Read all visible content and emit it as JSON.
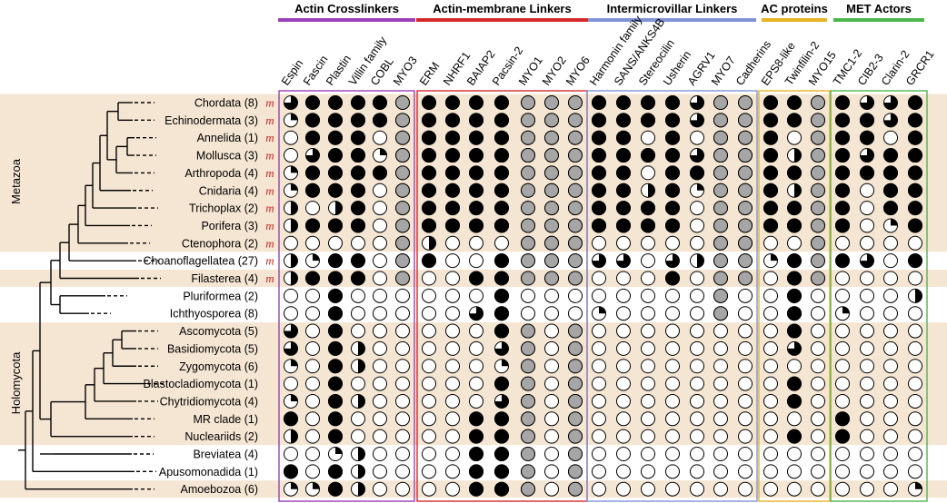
{
  "groups": [
    {
      "label": "Actin Crosslinkers",
      "color": "#9b3fb8"
    },
    {
      "label": "Actin-membrane Linkers",
      "color": "#d42a2a"
    },
    {
      "label": "Intermicrovillar Linkers",
      "color": "#7f93d6"
    },
    {
      "label": "AC proteins",
      "color": "#e8b323"
    },
    {
      "label": "MET Actors",
      "color": "#4cb84c"
    }
  ],
  "columns": [
    "Espin",
    "Fascin",
    "Plastin",
    "Villin family",
    "COBL",
    "MYO3",
    "ERM",
    "NHRF1",
    "BAIAP2",
    "Pacsin-2",
    "MYO1",
    "MYO2",
    "MYO6",
    "Harmonin family",
    "SANS/ANKS4B",
    "Stereocilin",
    "Usherin",
    "AGRV1",
    "MYO7",
    "Cadherins",
    "EPS8-like",
    "Twinfilin-2",
    "MYO15",
    "TMC1-2",
    "CIB2-3",
    "Clarin-2",
    "GRCR1"
  ],
  "clades": [
    {
      "label": "Metazoa"
    },
    {
      "label": "Holomycota"
    }
  ],
  "taxa": [
    {
      "name": "Chordata (8)",
      "mv": "m"
    },
    {
      "name": "Echinodermata (3)",
      "mv": "m"
    },
    {
      "name": "Annelida (1)",
      "mv": "m"
    },
    {
      "name": "Mollusca (3)",
      "mv": "m"
    },
    {
      "name": "Arthropoda (4)",
      "mv": "m"
    },
    {
      "name": "Cnidaria (4)",
      "mv": "m"
    },
    {
      "name": "Trichoplax (2)",
      "mv": "m"
    },
    {
      "name": "Porifera (3)",
      "mv": "m"
    },
    {
      "name": "Ctenophora (2)",
      "mv": "m"
    },
    {
      "name": "Choanoflagellatea (27)",
      "mv": "m"
    },
    {
      "name": "Filasterea (4)",
      "mv": "m"
    },
    {
      "name": "Pluriformea (2)",
      "mv": ""
    },
    {
      "name": "Ichthyosporea (8)",
      "mv": ""
    },
    {
      "name": "Ascomycota (5)",
      "mv": ""
    },
    {
      "name": "Basidiomycota (5)",
      "mv": ""
    },
    {
      "name": "Zygomycota (6)",
      "mv": ""
    },
    {
      "name": "Blastocladiomycota (1)",
      "mv": ""
    },
    {
      "name": "Chytridiomycota (4)",
      "mv": ""
    },
    {
      "name": "MR clade (1)",
      "mv": ""
    },
    {
      "name": "Nucleariids (2)",
      "mv": ""
    },
    {
      "name": "Breviatea (4)",
      "mv": ""
    },
    {
      "name": "Apusomonadida (1)",
      "mv": ""
    },
    {
      "name": "Amoebozoa (6)",
      "mv": ""
    }
  ],
  "legend_note": "cell values: 0 = absent, 0.25/0.5/0.75 = fraction of species with gene, 1 = present, g = gray",
  "matrix": [
    [
      0.75,
      1,
      1,
      1,
      1,
      "g",
      1,
      1,
      1,
      1,
      "g",
      "g",
      "g",
      1,
      1,
      1,
      1,
      0.75,
      "g",
      "g",
      1,
      1,
      "g",
      1,
      0.75,
      0.75,
      1
    ],
    [
      0.25,
      1,
      1,
      1,
      1,
      "g",
      1,
      1,
      1,
      1,
      "g",
      "g",
      "g",
      1,
      1,
      1,
      1,
      0.75,
      "g",
      "g",
      1,
      1,
      "g",
      1,
      1,
      0.75,
      1
    ],
    [
      0,
      1,
      1,
      1,
      0,
      "g",
      1,
      1,
      1,
      1,
      "g",
      "g",
      "g",
      1,
      1,
      0,
      1,
      0,
      "g",
      "g",
      1,
      0,
      "g",
      1,
      1,
      0,
      1
    ],
    [
      0,
      0.75,
      1,
      1,
      0.25,
      "g",
      1,
      1,
      1,
      1,
      "g",
      "g",
      "g",
      1,
      1,
      1,
      1,
      0.75,
      "g",
      "g",
      1,
      0.5,
      "g",
      1,
      0.75,
      1,
      1
    ],
    [
      0.25,
      1,
      1,
      1,
      1,
      "g",
      1,
      1,
      1,
      1,
      "g",
      "g",
      "g",
      1,
      1,
      0,
      1,
      1,
      "g",
      "g",
      1,
      1,
      "g",
      1,
      1,
      1,
      1
    ],
    [
      0.25,
      1,
      1,
      1,
      0,
      "g",
      1,
      1,
      1,
      1,
      "g",
      "g",
      "g",
      1,
      1,
      0.5,
      1,
      0.25,
      "g",
      "g",
      1,
      0.5,
      "g",
      1,
      0,
      1,
      1
    ],
    [
      0.5,
      0,
      0.5,
      1,
      0,
      "g",
      1,
      1,
      1,
      1,
      "g",
      "g",
      "g",
      1,
      1,
      1,
      1,
      0,
      "g",
      "g",
      1,
      1,
      "g",
      1,
      0,
      1,
      1
    ],
    [
      0.5,
      1,
      1,
      1,
      0,
      "g",
      1,
      1,
      1,
      1,
      "g",
      "g",
      "g",
      1,
      1,
      1,
      1,
      0,
      "g",
      "g",
      1,
      1,
      "g",
      1,
      0,
      0.25,
      1
    ],
    [
      0,
      0,
      0,
      0,
      0,
      "g",
      0.5,
      0,
      0,
      0,
      "g",
      "g",
      "g",
      0,
      0,
      0,
      0,
      0,
      "g",
      "g",
      0,
      0,
      "g",
      0,
      0,
      0,
      0
    ],
    [
      0.5,
      0.25,
      1,
      1,
      0,
      "g",
      1,
      0,
      0,
      1,
      "g",
      "g",
      "g",
      0.75,
      0.75,
      0,
      0.75,
      0.5,
      "g",
      "g",
      0.25,
      1,
      "g",
      1,
      0.75,
      0,
      1
    ],
    [
      0.5,
      1,
      1,
      1,
      0,
      "g",
      0,
      0,
      1,
      1,
      "g",
      "g",
      "g",
      0,
      0,
      0,
      1,
      0,
      "g",
      "g",
      0,
      1,
      "g",
      0,
      0,
      0,
      0
    ],
    [
      0,
      0,
      1,
      0,
      0,
      0,
      0,
      0,
      0,
      1,
      0,
      0,
      0,
      0,
      0,
      0,
      0,
      0,
      "g",
      0,
      0,
      1,
      0,
      0,
      0,
      0,
      0.5
    ],
    [
      0,
      0,
      1,
      0,
      0,
      0,
      0,
      0,
      0.75,
      1,
      0,
      0,
      0,
      0.25,
      0,
      0,
      0,
      0,
      "g",
      0,
      0,
      1,
      0,
      0.25,
      0,
      0,
      0
    ],
    [
      0.75,
      0,
      1,
      0,
      0,
      0,
      0,
      0,
      0,
      1,
      "g",
      0,
      "g",
      0,
      0,
      0,
      0,
      0,
      0,
      0,
      0,
      1,
      0,
      0,
      0,
      0,
      0
    ],
    [
      0.75,
      0,
      1,
      0.5,
      0,
      0,
      0,
      0,
      0,
      0.75,
      "g",
      0,
      "g",
      0,
      0,
      0,
      0,
      0,
      0,
      0,
      0,
      0.75,
      0,
      0,
      0,
      0,
      0
    ],
    [
      0.25,
      0,
      1,
      0.5,
      0,
      0,
      0,
      0,
      0,
      0.25,
      "g",
      0,
      "g",
      0,
      0,
      0,
      0,
      0,
      0,
      0,
      0,
      0,
      0,
      0,
      0,
      0,
      0
    ],
    [
      0,
      0,
      1,
      0,
      0,
      0,
      0,
      0,
      0,
      1,
      "g",
      0,
      "g",
      0,
      0,
      0,
      0,
      0,
      0,
      0,
      0,
      1,
      0,
      0,
      0,
      0,
      0
    ],
    [
      0.25,
      0,
      1,
      0.5,
      0,
      0,
      0,
      0,
      0,
      0.75,
      "g",
      0,
      "g",
      0,
      0,
      0,
      0,
      0,
      0,
      0,
      0,
      1,
      0,
      0,
      0,
      0,
      0
    ],
    [
      1,
      0,
      1,
      0,
      0,
      0,
      0,
      0,
      1,
      1,
      "g",
      0,
      "g",
      0,
      0,
      0,
      0,
      0,
      0,
      0,
      0,
      0,
      0,
      1,
      0,
      0,
      0
    ],
    [
      0.5,
      0,
      1,
      0,
      0,
      0,
      0,
      0,
      1,
      1,
      "g",
      0,
      "g",
      0,
      0,
      0,
      0,
      0,
      0,
      0,
      0,
      1,
      0,
      1,
      0,
      0,
      0
    ],
    [
      0,
      0,
      0.25,
      0.5,
      0,
      0,
      0,
      0,
      1,
      1,
      "g",
      0,
      "g",
      0,
      0,
      0,
      0,
      0,
      0,
      0,
      0,
      0,
      0,
      0,
      0,
      0,
      0
    ],
    [
      1,
      0,
      1,
      0.5,
      0,
      0,
      0,
      0,
      1,
      1,
      "g",
      0,
      "g",
      0,
      0,
      0,
      0,
      0,
      0,
      0,
      0,
      0,
      0,
      0,
      0,
      0,
      0
    ],
    [
      0.25,
      0.25,
      1,
      0.5,
      0,
      0,
      0,
      0,
      1,
      1,
      "g",
      0,
      "g",
      0,
      0,
      0,
      0,
      0,
      0,
      0,
      0,
      0,
      0,
      0,
      0,
      0,
      0.25
    ]
  ],
  "colors": {
    "band": "#f5e6d3",
    "gray_fill": "#a6a6a6",
    "mv_glyph": "#cc2222"
  }
}
